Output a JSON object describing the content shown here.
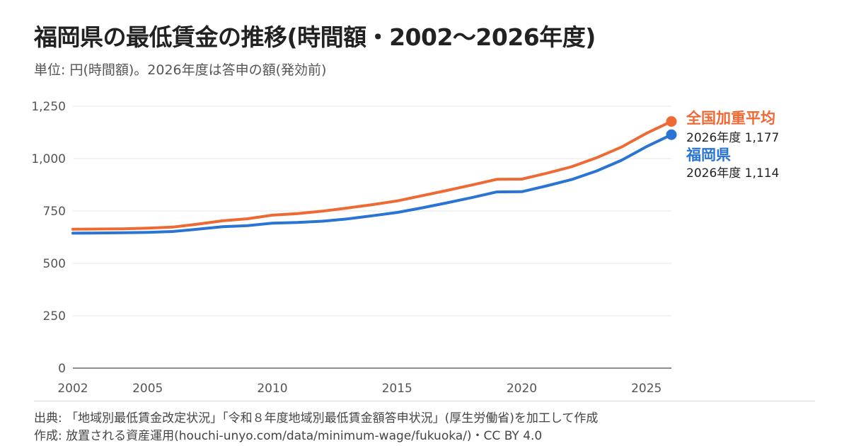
{
  "title": "福岡県の最低賃金の推移(時間額・2002〜2026年度)",
  "subtitle": "単位: 円(時間額)。2026年度は答申の額(発効前)",
  "colors": {
    "national": "#EE6A35",
    "fukuoka": "#2A74D3",
    "grid": "#e4e4e4",
    "axis": "#666666"
  },
  "chart_data": {
    "type": "line",
    "title": "福岡県の最低賃金の推移(時間額・2002〜2026年度)",
    "subtitle": "単位: 円(時間額)。2026年度は答申の額(発効前)",
    "xlabel": "",
    "ylabel": "",
    "xlim": [
      2002,
      2026
    ],
    "ylim": [
      0,
      1250
    ],
    "x_ticks": [
      "2002",
      "2005",
      "2010",
      "2015",
      "2020",
      "2025"
    ],
    "y_ticks": [
      "0",
      "250",
      "500",
      "750",
      "1,000",
      "1,250"
    ],
    "grid": "horizontal",
    "x": [
      2002,
      2003,
      2004,
      2005,
      2006,
      2007,
      2008,
      2009,
      2010,
      2011,
      2012,
      2013,
      2014,
      2015,
      2016,
      2017,
      2018,
      2019,
      2020,
      2021,
      2022,
      2023,
      2024,
      2025,
      2026
    ],
    "series": [
      {
        "name": "全国加重平均",
        "color": "#EE6A35",
        "values": [
          663,
          664,
          665,
          668,
          673,
          687,
          703,
          713,
          730,
          737,
          749,
          764,
          780,
          798,
          823,
          848,
          874,
          901,
          902,
          930,
          961,
          1004,
          1055,
          1121,
          1177
        ],
        "end_label_line1": "全国加重平均",
        "end_label_line2": "2026年度 1,177"
      },
      {
        "name": "福岡県",
        "color": "#2A74D3",
        "values": [
          644,
          645,
          646,
          648,
          652,
          663,
          675,
          680,
          692,
          695,
          701,
          712,
          727,
          743,
          765,
          789,
          814,
          841,
          842,
          870,
          900,
          941,
          992,
          1057,
          1114
        ],
        "end_label_line1": "福岡県",
        "end_label_line2": "2026年度 1,114"
      }
    ]
  },
  "footer": {
    "source": "出典: 「地域別最低賃金改定状況」「令和８年度地域別最低賃金額答申状況」(厚生労働省)を加工して作成",
    "credit": "作成: 放置される資産運用(houchi-unyo.com/data/minimum-wage/fukuoka/)・CC BY 4.0"
  }
}
